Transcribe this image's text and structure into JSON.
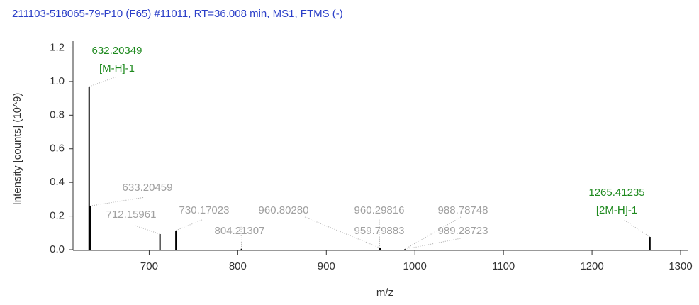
{
  "chart_data": {
    "type": "spectrum",
    "title": "211103-518065-79-P10 (F65) #11011, RT=36.008 min, MS1, FTMS (-)",
    "xlabel": "m/z",
    "ylabel": "Intensity [counts] (10^9)",
    "x": [
      632.20349,
      633.20459,
      712.15961,
      730.17023,
      804.21307,
      960.8028,
      960.29816,
      959.79883,
      988.78748,
      989.28723,
      1265.41235
    ],
    "x_labels": [
      "632.20349",
      "633.20459",
      "712.15961",
      "730.17023",
      "804.21307",
      "960.80280",
      "960.29816",
      "959.79883",
      "988.78748",
      "989.28723",
      "1265.41235"
    ],
    "values": [
      0.97,
      0.26,
      0.093,
      0.114,
      0.005,
      0.01,
      0.01,
      0.008,
      0.003,
      0.003,
      0.076
    ],
    "annotations": [
      "[M-H]-1",
      null,
      null,
      null,
      null,
      null,
      null,
      null,
      null,
      null,
      "[2M-H]-1"
    ],
    "color": "#000000",
    "title_color": "#2b3fc8",
    "label_color": "#a0a0a0",
    "annotation_color": "#1f8a1f",
    "xlim": [
      614,
      1308
    ],
    "xticks": [
      700,
      800,
      900,
      1000,
      1100,
      1200,
      1300
    ],
    "ylim": [
      0,
      1.24
    ],
    "yticks": [
      {
        "value": 0,
        "label": "0.0"
      },
      0.2,
      0.4,
      0.6,
      0.8,
      {
        "value": 1,
        "label": "1.0"
      },
      1.2
    ]
  }
}
